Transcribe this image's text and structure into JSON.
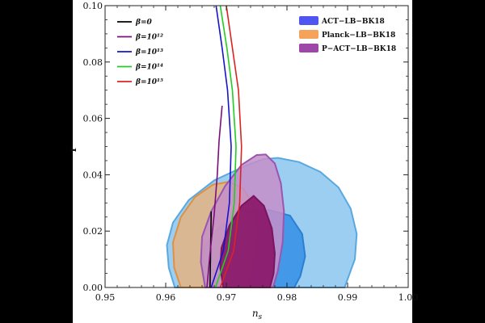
{
  "chart_data": {
    "type": "contour",
    "xlabel": "n_s",
    "ylabel": "r",
    "xlim": [
      0.95,
      1.0
    ],
    "ylim": [
      0.0,
      0.1
    ],
    "xticks": [
      "0.95",
      "0.96",
      "0.97",
      "0.98",
      "0.99",
      "1.00"
    ],
    "yticks": [
      "0.00",
      "0.02",
      "0.04",
      "0.06",
      "0.08",
      "0.10"
    ],
    "line_legend": [
      {
        "label": "β=0",
        "color": "#000000"
      },
      {
        "label": "β=10¹²",
        "color": "#7a0f7a"
      },
      {
        "label": "β=10¹³",
        "color": "#1414c8"
      },
      {
        "label": "β=10¹⁴",
        "color": "#22cc22"
      },
      {
        "label": "β=10¹⁵",
        "color": "#dd2222"
      }
    ],
    "contour_legend": [
      {
        "label": "ACT−LB−BK18",
        "color": "#4f55f0"
      },
      {
        "label": "Planck−LB−BK18",
        "color": "#f5a25a"
      },
      {
        "label": "P−ACT−LB−BK18",
        "color": "#9e47a8"
      }
    ],
    "contours": [
      {
        "name": "ACT−LB−BK18 95%",
        "color": "#8ac6ef",
        "edge": "#5aa8e0",
        "alpha": 0.85,
        "points": [
          [
            0.9615,
            0.0
          ],
          [
            0.9605,
            0.007
          ],
          [
            0.9602,
            0.015
          ],
          [
            0.9612,
            0.023
          ],
          [
            0.9638,
            0.031
          ],
          [
            0.968,
            0.038
          ],
          [
            0.9735,
            0.0435
          ],
          [
            0.976,
            0.0455
          ],
          [
            0.9785,
            0.046
          ],
          [
            0.982,
            0.0445
          ],
          [
            0.9855,
            0.041
          ],
          [
            0.9885,
            0.0355
          ],
          [
            0.9905,
            0.028
          ],
          [
            0.9915,
            0.019
          ],
          [
            0.9912,
            0.01
          ],
          [
            0.9895,
            0.0
          ],
          [
            0.9615,
            0.0
          ]
        ]
      },
      {
        "name": "ACT−LB−BK18 68%",
        "color": "#3a93e6",
        "edge": "#2a7fd0",
        "alpha": 0.9,
        "points": [
          [
            0.9665,
            0.0
          ],
          [
            0.966,
            0.008
          ],
          [
            0.9665,
            0.015
          ],
          [
            0.969,
            0.022
          ],
          [
            0.9735,
            0.0265
          ],
          [
            0.977,
            0.0275
          ],
          [
            0.9805,
            0.0255
          ],
          [
            0.9825,
            0.019
          ],
          [
            0.983,
            0.011
          ],
          [
            0.9822,
            0.004
          ],
          [
            0.9812,
            0.0
          ],
          [
            0.9665,
            0.0
          ]
        ]
      },
      {
        "name": "Planck−LB−BK18 95%",
        "color": "#eab27c",
        "edge": "#e09040",
        "alpha": 0.8,
        "points": [
          [
            0.9625,
            0.0
          ],
          [
            0.9614,
            0.007
          ],
          [
            0.9612,
            0.016
          ],
          [
            0.9625,
            0.025
          ],
          [
            0.9648,
            0.032
          ],
          [
            0.9678,
            0.0365
          ],
          [
            0.9705,
            0.0375
          ],
          [
            0.9728,
            0.035
          ],
          [
            0.9745,
            0.029
          ],
          [
            0.9752,
            0.021
          ],
          [
            0.9748,
            0.011
          ],
          [
            0.9735,
            0.0
          ],
          [
            0.9625,
            0.0
          ]
        ]
      },
      {
        "name": "P−ACT−LB−BK18 95%",
        "color": "#c48ec8",
        "edge": "#9a55b0",
        "alpha": 0.85,
        "points": [
          [
            0.9665,
            0.0
          ],
          [
            0.9658,
            0.009
          ],
          [
            0.966,
            0.018
          ],
          [
            0.9675,
            0.027
          ],
          [
            0.9698,
            0.036
          ],
          [
            0.9725,
            0.0435
          ],
          [
            0.975,
            0.047
          ],
          [
            0.9765,
            0.0472
          ],
          [
            0.978,
            0.044
          ],
          [
            0.979,
            0.037
          ],
          [
            0.9795,
            0.027
          ],
          [
            0.9793,
            0.016
          ],
          [
            0.9785,
            0.006
          ],
          [
            0.9777,
            0.0
          ],
          [
            0.9665,
            0.0
          ]
        ]
      },
      {
        "name": "P−ACT−LB−BK18 68%",
        "color": "#8b1a6c",
        "edge": "#7a1460",
        "alpha": 0.95,
        "points": [
          [
            0.9695,
            0.0
          ],
          [
            0.969,
            0.007
          ],
          [
            0.9692,
            0.014
          ],
          [
            0.9705,
            0.022
          ],
          [
            0.9725,
            0.029
          ],
          [
            0.9745,
            0.0325
          ],
          [
            0.9762,
            0.029
          ],
          [
            0.9775,
            0.021
          ],
          [
            0.978,
            0.012
          ],
          [
            0.9778,
            0.005
          ],
          [
            0.9772,
            0.0
          ],
          [
            0.9695,
            0.0
          ]
        ]
      }
    ],
    "series": [
      {
        "name": "β=0",
        "color": "#000000",
        "points": [
          [
            0.9673,
            0.0
          ],
          [
            0.9675,
            0.027
          ]
        ]
      },
      {
        "name": "β=10¹²",
        "color": "#7a0f7a",
        "points": [
          [
            0.9668,
            0.0
          ],
          [
            0.9673,
            0.012
          ],
          [
            0.968,
            0.026
          ],
          [
            0.9685,
            0.04
          ],
          [
            0.9688,
            0.052
          ],
          [
            0.9693,
            0.0645
          ]
        ]
      },
      {
        "name": "β=10¹³",
        "color": "#1414c8",
        "points": [
          [
            0.9675,
            0.0
          ],
          [
            0.9695,
            0.013
          ],
          [
            0.9705,
            0.03
          ],
          [
            0.9708,
            0.05
          ],
          [
            0.9702,
            0.07
          ],
          [
            0.9693,
            0.085
          ],
          [
            0.9683,
            0.1
          ]
        ]
      },
      {
        "name": "β=10¹⁴",
        "color": "#22cc22",
        "points": [
          [
            0.9682,
            0.0
          ],
          [
            0.9703,
            0.013
          ],
          [
            0.9713,
            0.03
          ],
          [
            0.9716,
            0.05
          ],
          [
            0.971,
            0.07
          ],
          [
            0.9701,
            0.085
          ],
          [
            0.969,
            0.1
          ]
        ]
      },
      {
        "name": "β=10¹⁵",
        "color": "#dd2222",
        "points": [
          [
            0.969,
            0.0
          ],
          [
            0.9712,
            0.013
          ],
          [
            0.9722,
            0.03
          ],
          [
            0.9725,
            0.05
          ],
          [
            0.972,
            0.07
          ],
          [
            0.971,
            0.085
          ],
          [
            0.97,
            0.1
          ]
        ]
      }
    ]
  }
}
